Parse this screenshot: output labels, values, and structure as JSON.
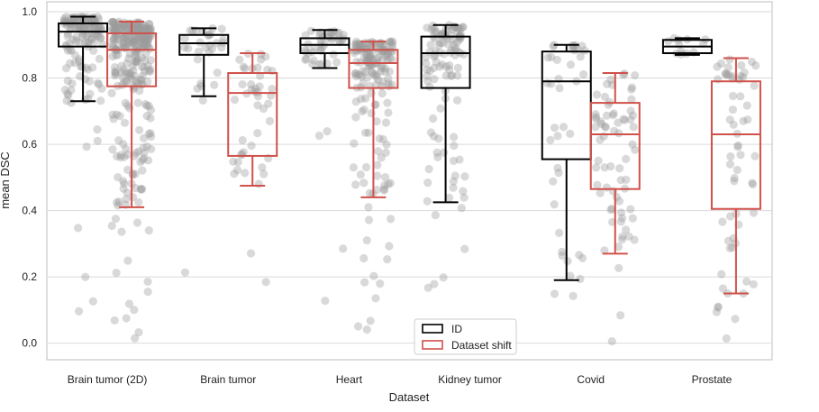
{
  "chart_data": {
    "type": "box-strip",
    "title": "",
    "xlabel": "Dataset",
    "ylabel": "mean DSC",
    "ylim": [
      -0.05,
      1.03
    ],
    "yticks": [
      "0.0",
      "0.2",
      "0.4",
      "0.6",
      "0.8",
      "1.0"
    ],
    "grid": true,
    "legend_position": "bottom-center",
    "categories": [
      "Brain tumor (2D)",
      "Brain tumor",
      "Heart",
      "Kidney tumor",
      "Covid",
      "Prostate"
    ],
    "series": [
      {
        "name": "ID",
        "color": "#000000",
        "boxes": [
          {
            "whisker_low": 0.73,
            "q1": 0.895,
            "median": 0.94,
            "q3": 0.965,
            "whisker_high": 0.985
          },
          {
            "whisker_low": 0.745,
            "q1": 0.87,
            "median": 0.905,
            "q3": 0.93,
            "whisker_high": 0.95
          },
          {
            "whisker_low": 0.83,
            "q1": 0.875,
            "median": 0.9,
            "q3": 0.92,
            "whisker_high": 0.945
          },
          {
            "whisker_low": 0.425,
            "q1": 0.77,
            "median": 0.875,
            "q3": 0.925,
            "whisker_high": 0.96
          },
          {
            "whisker_low": 0.19,
            "q1": 0.555,
            "median": 0.79,
            "q3": 0.88,
            "whisker_high": 0.9
          },
          {
            "whisker_low": 0.87,
            "q1": 0.875,
            "median": 0.895,
            "q3": 0.915,
            "whisker_high": 0.92
          }
        ]
      },
      {
        "name": "Dataset shift",
        "color": "#d0504a",
        "boxes": [
          {
            "whisker_low": 0.41,
            "q1": 0.775,
            "median": 0.885,
            "q3": 0.935,
            "whisker_high": 0.97
          },
          {
            "whisker_low": 0.475,
            "q1": 0.565,
            "median": 0.755,
            "q3": 0.815,
            "whisker_high": 0.875
          },
          {
            "whisker_low": 0.44,
            "q1": 0.77,
            "median": 0.845,
            "q3": 0.885,
            "whisker_high": 0.91
          },
          null,
          {
            "whisker_low": 0.27,
            "q1": 0.465,
            "median": 0.63,
            "q3": 0.725,
            "whisker_high": 0.815
          },
          {
            "whisker_low": 0.15,
            "q1": 0.405,
            "median": 0.63,
            "q3": 0.79,
            "whisker_high": 0.86
          }
        ]
      }
    ],
    "points_note_colors": {
      "points": "#9a9a9a"
    }
  }
}
